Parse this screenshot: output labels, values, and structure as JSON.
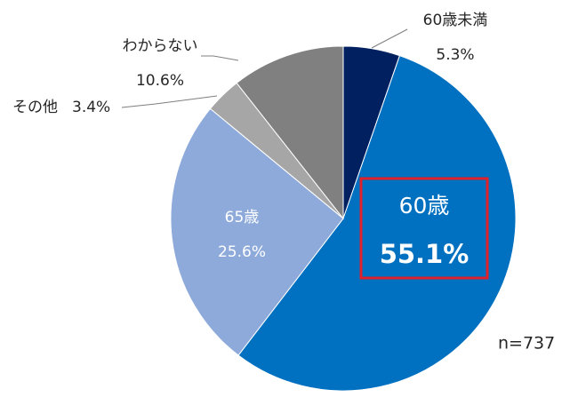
{
  "chart_data": {
    "type": "pie",
    "categories": [
      "60歳未満",
      "60歳",
      "65歳",
      "その他",
      "わからない"
    ],
    "values": [
      5.3,
      55.1,
      25.6,
      3.4,
      10.6
    ],
    "value_labels": [
      "5.3%",
      "55.1%",
      "25.6%",
      "3.4%",
      "10.6%"
    ],
    "colors": [
      "#002060",
      "#0070c0",
      "#8eaadb",
      "#a6a6a6",
      "#808080"
    ],
    "note": "n=737"
  }
}
